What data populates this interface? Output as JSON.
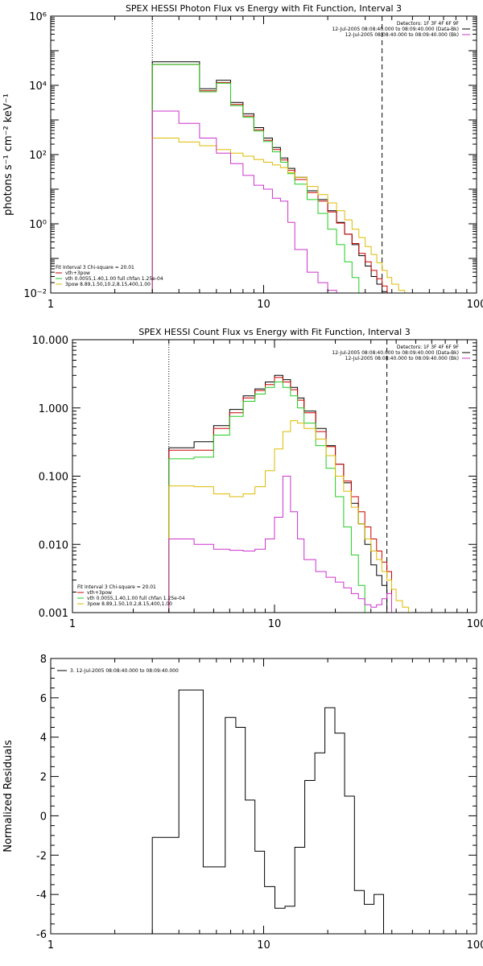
{
  "chart_data": [
    {
      "type": "line",
      "title": "SPEX HESSI Photon Flux vs Energy with Fit Function, Interval 3",
      "ylabel": "photons s⁻¹ cm⁻² keV⁻¹",
      "xlabel": "",
      "xscale": "log",
      "yscale": "log",
      "xlim": [
        1,
        100
      ],
      "ylim": [
        0.01,
        1000000
      ],
      "x_ticks": [
        1,
        10,
        100
      ],
      "x_tick_labels": [
        "1",
        "10",
        "100"
      ],
      "y_ticks": [
        0.01,
        1,
        100,
        10000,
        1000000
      ],
      "y_tick_labels": [
        "10⁻²",
        "10⁰",
        "10²",
        "10⁴",
        "10⁶"
      ],
      "vlines": [
        {
          "x": 3,
          "style": "dotted"
        },
        {
          "x": 36,
          "style": "dashed"
        }
      ],
      "info_lines": [
        "Detectors: 1F 3F 4F 6F 9F",
        "12-Jul-2005 08:08:40.000 to 08:09:40.000 (Data-Bk)",
        "12-Jul-2005 08:08:40.000 to 08:09:40.000 (Bk)"
      ],
      "info_colors": [
        "",
        "#000000",
        "#cc33cc"
      ],
      "fit_lines": [
        "Fit Interval 3   Chi-square = 20.01",
        "vth+3pow",
        "vth 0.0055,1.40,1.00  full chfan 1.25e-04",
        "3pow 8.89,1.50,10.2,8.15,400,1.00"
      ],
      "fit_colors": [
        "",
        "#cc0000",
        "#22cc22",
        "#ddbb00"
      ],
      "x_edges": [
        3,
        4,
        5,
        6,
        7,
        8,
        9,
        10,
        11,
        12,
        13,
        14,
        16,
        18,
        20,
        22,
        24,
        26,
        28,
        30,
        32,
        34,
        36,
        38,
        40,
        43,
        46,
        50
      ],
      "series": [
        {
          "name": "data",
          "color": "#000000",
          "values": [
            48000,
            48000,
            8000,
            14000,
            3200,
            1500,
            600,
            300,
            160,
            80,
            40,
            22,
            9,
            5,
            2.4,
            1.1,
            0.5,
            0.25,
            0.12,
            0.06,
            0.03,
            0.018,
            0.011,
            null,
            null,
            null,
            null
          ]
        },
        {
          "name": "vth+3pow",
          "color": "#cc0000",
          "values": [
            40000,
            40000,
            7000,
            12000,
            2800,
            1300,
            520,
            260,
            140,
            70,
            35,
            19,
            8,
            4.5,
            2.2,
            1.05,
            0.5,
            0.27,
            0.14,
            0.08,
            0.045,
            0.026,
            0.016,
            null,
            null,
            null,
            null
          ]
        },
        {
          "name": "vth",
          "color": "#22cc22",
          "values": [
            40000,
            40000,
            6500,
            11500,
            2600,
            1200,
            480,
            240,
            120,
            60,
            28,
            14,
            5,
            2,
            0.7,
            0.25,
            0.08,
            0.028,
            0.01,
            null,
            null,
            null,
            null,
            null,
            null,
            null,
            null
          ]
        },
        {
          "name": "3pow",
          "color": "#ddbb00",
          "values": [
            300,
            230,
            180,
            140,
            110,
            90,
            72,
            60,
            50,
            42,
            30,
            22,
            12,
            7,
            4,
            2.4,
            1.3,
            0.7,
            0.4,
            0.22,
            0.13,
            0.075,
            0.045,
            0.028,
            0.018,
            0.012,
            null
          ]
        },
        {
          "name": "bk",
          "color": "#cc33cc",
          "values": [
            1800,
            800,
            300,
            110,
            55,
            25,
            13,
            10,
            5.5,
            4.5,
            1.1,
            0.18,
            0.04,
            0.02,
            0.012,
            0.009,
            0.007,
            0.006,
            0.005,
            0.005,
            0.004,
            0.004,
            null,
            null,
            null,
            null,
            null
          ]
        }
      ]
    },
    {
      "type": "line",
      "title": "SPEX HESSI Count Flux vs Energy with Fit Function, Interval 3",
      "ylabel": "",
      "xlabel": "",
      "xscale": "log",
      "yscale": "log",
      "xlim": [
        1,
        100
      ],
      "ylim": [
        0.001,
        10
      ],
      "x_ticks": [
        1,
        10,
        100
      ],
      "x_tick_labels": [
        "1",
        "10",
        "100"
      ],
      "y_ticks": [
        0.001,
        0.01,
        0.1,
        1,
        10
      ],
      "y_tick_labels": [
        "0.001",
        "0.010",
        "0.100",
        "1.000",
        "10.000"
      ],
      "vlines": [
        {
          "x": 3,
          "style": "dotted"
        },
        {
          "x": 36,
          "style": "dashed"
        }
      ],
      "info_lines": [
        "Detectors: 1F 3F 4F 6F 9F",
        "12-Jul-2005 08:08:40.000 to 08:09:40.000 (Data-Bk)",
        "12-Jul-2005 08:08:40.000 to 08:09:40.000 (Bk)"
      ],
      "info_colors": [
        "",
        "#000000",
        "#cc33cc"
      ],
      "fit_lines": [
        "Fit Interval 3   Chi-square = 20.01",
        "vth+3pow",
        "vth 0.0055,1.40,1.00  full chfan 1.25e-04",
        "3pow 8.89,1.50,10.2,8.15,400,1.00"
      ],
      "fit_colors": [
        "",
        "#cc0000",
        "#22cc22",
        "#ddbb00"
      ],
      "x_edges": [
        3,
        4,
        5,
        6,
        7,
        8,
        9,
        10,
        11,
        12,
        13,
        14,
        16,
        18,
        20,
        22,
        24,
        26,
        28,
        30,
        32,
        34,
        36,
        38,
        40,
        43,
        46,
        50
      ],
      "series": [
        {
          "name": "data",
          "color": "#000000",
          "values": [
            0.26,
            0.32,
            0.55,
            0.95,
            1.5,
            1.9,
            2.4,
            3.0,
            2.6,
            2.0,
            1.4,
            0.9,
            0.5,
            0.28,
            0.15,
            0.08,
            0.04,
            0.02,
            0.01,
            0.005,
            0.0035,
            0.0025,
            0.001,
            null,
            null,
            null,
            null
          ]
        },
        {
          "name": "vth+3pow",
          "color": "#cc0000",
          "values": [
            0.24,
            0.24,
            0.5,
            0.85,
            1.4,
            1.8,
            2.2,
            2.8,
            2.4,
            1.85,
            1.3,
            0.85,
            0.45,
            0.27,
            0.15,
            0.085,
            0.05,
            0.03,
            0.018,
            0.012,
            0.008,
            0.0055,
            0.004,
            null,
            null,
            null,
            null
          ]
        },
        {
          "name": "vth",
          "color": "#22cc22",
          "values": [
            0.18,
            0.19,
            0.4,
            0.75,
            1.25,
            1.6,
            2.0,
            2.4,
            2.0,
            1.5,
            1.0,
            0.6,
            0.28,
            0.13,
            0.05,
            0.018,
            0.007,
            0.0025,
            0.0009,
            null,
            null,
            null,
            null,
            null,
            null,
            null,
            null
          ]
        },
        {
          "name": "3pow",
          "color": "#ddbb00",
          "values": [
            0.072,
            0.07,
            0.055,
            0.05,
            0.055,
            0.07,
            0.12,
            0.25,
            0.45,
            0.65,
            0.6,
            0.5,
            0.35,
            0.2,
            0.1,
            0.06,
            0.035,
            0.02,
            0.012,
            0.008,
            0.006,
            0.004,
            0.003,
            0.0022,
            0.0015,
            0.0012,
            null
          ]
        },
        {
          "name": "bk",
          "color": "#cc33cc",
          "values": [
            0.012,
            0.01,
            0.0085,
            0.0082,
            0.008,
            0.0085,
            0.012,
            0.025,
            0.1,
            0.03,
            0.012,
            0.006,
            0.004,
            0.0033,
            0.0028,
            0.0023,
            0.0019,
            0.0016,
            0.0013,
            0.0012,
            0.0013,
            0.0016,
            0.0019,
            null,
            null,
            null,
            null
          ]
        }
      ]
    },
    {
      "type": "line",
      "title": "",
      "ylabel": "Normalized Residuals",
      "xlabel": "",
      "xscale": "log",
      "yscale": "linear",
      "xlim": [
        1,
        100
      ],
      "ylim": [
        -6,
        8
      ],
      "x_ticks": [
        1,
        10,
        100
      ],
      "x_tick_labels": [
        "1",
        "10",
        "100"
      ],
      "y_ticks": [
        -6,
        -4,
        -2,
        0,
        2,
        4,
        6,
        8
      ],
      "y_tick_labels": [
        "-6",
        "-4",
        "-2",
        "0",
        "2",
        "4",
        "6",
        "8"
      ],
      "legend": "3. 12-Jul-2005 08:08:40.000 to 08:09:40.000",
      "x_edges": [
        3,
        3.5,
        4,
        4.6,
        5.2,
        5.9,
        6.6,
        7.4,
        8.2,
        9.1,
        10.1,
        11.3,
        12.6,
        14,
        15.6,
        17.4,
        19.4,
        21.6,
        24,
        26.7,
        29.7,
        33,
        36.6
      ],
      "series": [
        {
          "name": "residuals",
          "color": "#000000",
          "values": [
            -1.1,
            -1.1,
            6.4,
            6.4,
            -2.6,
            -2.6,
            5.0,
            4.5,
            0.8,
            -1.8,
            -3.6,
            -4.7,
            -4.6,
            -1.6,
            1.8,
            3.2,
            5.5,
            4.2,
            1.0,
            -3.8,
            -4.5,
            -4.0
          ]
        }
      ]
    }
  ]
}
